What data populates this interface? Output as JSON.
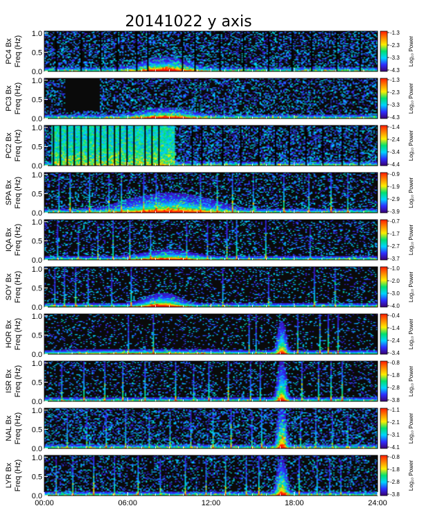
{
  "chart_data": {
    "type": "heatmap",
    "title": "20141022 y axis",
    "x": {
      "ticks": [
        "00:00",
        "06:00",
        "12:00",
        "18:00",
        "24:00"
      ],
      "range_hours": [
        0,
        24
      ]
    },
    "y_ticks": [
      "0.0",
      "0.5",
      "1.0"
    ],
    "y_range_hz": [
      0,
      1.05
    ],
    "colorbar_label": "Log₁₀ Power",
    "colormap": [
      "#3a0070",
      "#2d2dff",
      "#00d4ff",
      "#00e070",
      "#ffee00",
      "#ff8800",
      "#ff1a00"
    ],
    "background_color": "#0a0a0a",
    "panels": [
      {
        "station": "PC4 Bx",
        "ylabel2": "Freq (Hz)",
        "cbar_ticks": [
          "-1.3",
          "-2.3",
          "-3.3",
          "-4.3"
        ],
        "noise": 0.45,
        "seed": 11,
        "gaps_h": [
          0.8,
          2.6,
          4.0,
          5.2,
          6.6,
          7.4,
          9.9,
          10.8,
          12.6,
          14.3,
          16.1,
          17.8,
          19.2,
          21.0,
          22.7
        ],
        "events": [
          {
            "t": 8.7,
            "w": 1.8,
            "f": 0.15,
            "a": 1.0
          }
        ],
        "streaks": []
      },
      {
        "station": "PC3 Bx",
        "ylabel2": "Freq (Hz)",
        "cbar_ticks": [
          "-1.3",
          "-2.3",
          "-3.3",
          "-4.3"
        ],
        "noise": 0.4,
        "seed": 23,
        "gaps_h": [],
        "dark": [
          {
            "t0": 1.5,
            "t1": 4.0,
            "f0": 0.2
          }
        ],
        "events": [
          {
            "t": 8.8,
            "w": 2.0,
            "f": 0.12,
            "a": 0.85
          }
        ],
        "streaks": []
      },
      {
        "station": "PC2 Bx",
        "ylabel2": "Freq (Hz)",
        "cbar_ticks": [
          "-1.4",
          "-2.4",
          "-3.4",
          "-4.4"
        ],
        "noise": 0.5,
        "seed": 37,
        "gaps_h": [
          0.6,
          1.1,
          1.6,
          2.1,
          2.6,
          3.1,
          3.6,
          4.0,
          4.5,
          5.0,
          5.4,
          5.9,
          6.4,
          7.2,
          7.7,
          8.2,
          10.6,
          11.3,
          12.8,
          14.1,
          15.4,
          16.6,
          17.6,
          18.8,
          20.0,
          21.4,
          22.6
        ],
        "bright": [
          {
            "t0": 0.5,
            "t1": 9.4,
            "a": 0.75
          }
        ],
        "events": [],
        "streaks": []
      },
      {
        "station": "SPA Bx",
        "ylabel2": "Freq (Hz)",
        "cbar_ticks": [
          "-0.9",
          "-1.9",
          "-2.9",
          "-3.9"
        ],
        "noise": 0.32,
        "seed": 41,
        "gaps_h": [],
        "events": [
          {
            "t": 9.0,
            "w": 3.5,
            "f": 0.22,
            "a": 0.85
          }
        ],
        "streaks": [
          1.0,
          1.8,
          3.2,
          4.6,
          5.5,
          7.1,
          8.0,
          11.2,
          12.4,
          13.5,
          15.0,
          17.2,
          19.0,
          20.6,
          21.8
        ]
      },
      {
        "station": "IQA Bx",
        "ylabel2": "Freq (Hz)",
        "cbar_ticks": [
          "-0.7",
          "-1.7",
          "-2.7",
          "-3.7"
        ],
        "noise": 0.28,
        "seed": 53,
        "gaps_h": [],
        "events": [
          {
            "t": 8.9,
            "w": 2.0,
            "f": 0.12,
            "a": 0.7
          }
        ],
        "streaks": [
          0.9,
          2.4,
          3.8,
          4.9,
          6.1,
          7.6,
          10.2,
          11.7,
          13.1,
          13.8,
          15.9,
          19.1
        ]
      },
      {
        "station": "SOY Bx",
        "ylabel2": "Freq (Hz)",
        "cbar_ticks": [
          "-1.0",
          "-2.0",
          "-3.0",
          "-4.0"
        ],
        "noise": 0.22,
        "seed": 67,
        "gaps_h": [],
        "events": [
          {
            "t": 8.5,
            "w": 1.4,
            "f": 0.15,
            "a": 0.95
          }
        ],
        "streaks": [
          0.7,
          1.4,
          2.2,
          3.1,
          4.8,
          6.2,
          12.8,
          16.1,
          19.4,
          20.9
        ]
      },
      {
        "station": "HOR Bx",
        "ylabel2": "Freq (Hz)",
        "cbar_ticks": [
          "-0.4",
          "-1.4",
          "-2.4",
          "-3.4"
        ],
        "noise": 0.18,
        "seed": 71,
        "gaps_h": [],
        "events": [
          {
            "t": 17.1,
            "w": 0.35,
            "f": 0.35,
            "a": 1.0
          },
          {
            "t": 7.0,
            "w": 5.0,
            "f": 0.06,
            "a": 0.35
          }
        ],
        "streaks": [
          6.0,
          7.8,
          14.7,
          15.2,
          18.2,
          19.8,
          20.4,
          21.1
        ]
      },
      {
        "station": "ISR Bx",
        "ylabel2": "Freq (Hz)",
        "cbar_ticks": [
          "-0.8",
          "-1.8",
          "-2.8",
          "-3.8"
        ],
        "noise": 0.24,
        "seed": 83,
        "gaps_h": [],
        "events": [
          {
            "t": 17.1,
            "w": 0.35,
            "f": 0.45,
            "a": 1.0
          }
        ],
        "streaks": [
          1.2,
          2.8,
          4.3,
          5.6,
          7.2,
          9.4,
          10.7,
          11.8,
          13.2,
          14.8,
          15.5,
          18.5,
          19.7,
          20.6,
          21.4
        ]
      },
      {
        "station": "NAL Bx",
        "ylabel2": "Freq (Hz)",
        "cbar_ticks": [
          "-1.1",
          "-2.1",
          "-3.1",
          "-4.1"
        ],
        "noise": 0.42,
        "seed": 97,
        "gaps_h": [],
        "events": [
          {
            "t": 17.1,
            "w": 0.35,
            "f": 0.5,
            "a": 1.0
          }
        ],
        "streaks": [
          1.6,
          3.0,
          4.4,
          5.8,
          7.5,
          9.0,
          10.5,
          12.1,
          13.4,
          14.9,
          15.6,
          18.4,
          19.5,
          20.7,
          21.8
        ]
      },
      {
        "station": "LYR Bx",
        "ylabel2": "Freq (Hz)",
        "cbar_ticks": [
          "-0.8",
          "-1.8",
          "-2.8",
          "-3.8"
        ],
        "noise": 0.3,
        "seed": 101,
        "gaps_h": [],
        "events": [
          {
            "t": 17.1,
            "w": 0.4,
            "f": 0.4,
            "a": 1.0
          }
        ],
        "streaks": [
          0.8,
          2.0,
          3.5,
          5.0,
          6.7,
          8.3,
          10.1,
          11.6,
          13.0,
          14.5,
          15.4,
          18.3,
          19.6,
          20.5,
          21.3
        ]
      }
    ]
  }
}
